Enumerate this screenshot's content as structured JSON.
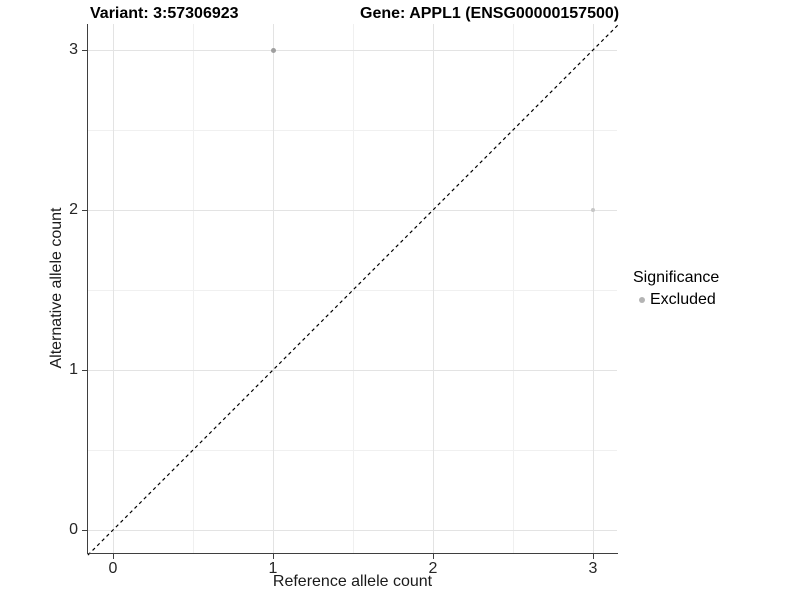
{
  "chart_data": {
    "type": "scatter",
    "titles": {
      "left": "Variant: 3:57306923",
      "right": "Gene: APPL1 (ENSG00000157500)"
    },
    "xlabel": "Reference allele count",
    "ylabel": "Alternative allele count",
    "x_ticks": [
      0,
      1,
      2,
      3
    ],
    "y_ticks": [
      0,
      1,
      2,
      3
    ],
    "x_minor": [
      0.5,
      1.5,
      2.5
    ],
    "y_minor": [
      0.5,
      1.5,
      2.5
    ],
    "xlim": [
      -0.157,
      3.157
    ],
    "ylim": [
      -0.157,
      3.157
    ],
    "grid": "on",
    "points": [
      {
        "x": 1,
        "y": 3,
        "significance": "Excluded",
        "color": "#9f9f9f",
        "size": 5
      },
      {
        "x": 3,
        "y": 2,
        "significance": "Excluded",
        "color": "#c7c7c7",
        "size": 4.5
      }
    ],
    "reference_line": {
      "slope": 1,
      "intercept": 0,
      "style": "dashed",
      "color": "#000000"
    },
    "legend": {
      "title": "Significance",
      "position": "right",
      "items": [
        {
          "label": "Excluded",
          "color": "#b4b4b4"
        }
      ]
    },
    "colors": {
      "grid_major": "#e3e3e3",
      "grid_minor": "#f0f0f0",
      "axis": "#3f3f3f",
      "background": "#ffffff"
    }
  }
}
